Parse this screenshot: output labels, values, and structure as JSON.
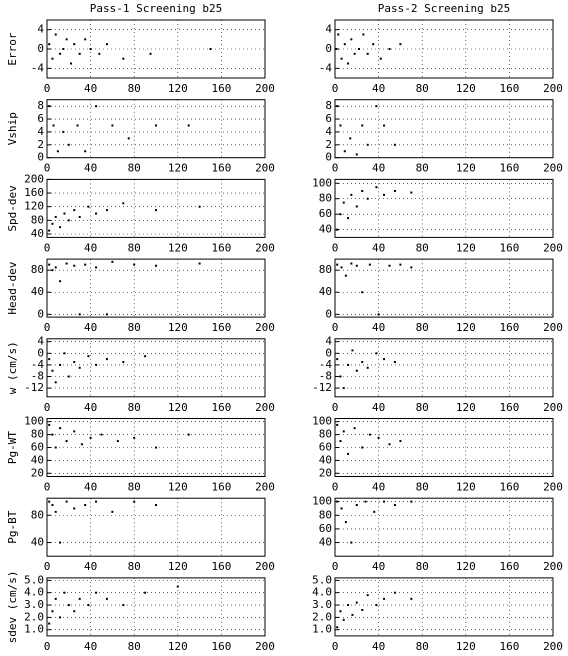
{
  "chart_data": [
    {
      "type": "scatter",
      "title": "Pass-1 Screening b25",
      "ylabel": "Error",
      "color": "#000000",
      "grid": true,
      "xlim": [
        0,
        200
      ],
      "xticks": [
        0,
        40,
        80,
        120,
        160,
        200
      ],
      "ylim": [
        -6,
        6
      ],
      "yticks": [
        -4,
        0,
        4
      ],
      "x": [
        2,
        5,
        8,
        12,
        15,
        18,
        22,
        25,
        30,
        35,
        40,
        48,
        55,
        70,
        95,
        150
      ],
      "values": [
        1,
        -2,
        3,
        -1,
        0,
        2,
        -3,
        1,
        -1,
        2,
        0,
        -1,
        1,
        -2,
        -1,
        0
      ]
    },
    {
      "type": "scatter",
      "title": "Pass-2 Screening b25",
      "color": "#000000",
      "grid": true,
      "xlim": [
        0,
        200
      ],
      "xticks": [
        0,
        40,
        80,
        120,
        160,
        200
      ],
      "ylim": [
        -6,
        6
      ],
      "yticks": [
        -4,
        0,
        4
      ],
      "x": [
        1,
        3,
        6,
        9,
        12,
        15,
        18,
        22,
        26,
        30,
        35,
        42,
        50,
        60
      ],
      "values": [
        0,
        3,
        -2,
        1,
        -3,
        2,
        -1,
        0,
        3,
        -1,
        1,
        -2,
        0,
        1
      ]
    },
    {
      "type": "scatter",
      "ylabel": "Vship",
      "color": "#000000",
      "grid": true,
      "xlim": [
        0,
        200
      ],
      "xticks": [
        0,
        40,
        80,
        120,
        160,
        200
      ],
      "ylim": [
        0,
        9
      ],
      "yticks": [
        0,
        2,
        4,
        6,
        8
      ],
      "x": [
        2,
        6,
        10,
        15,
        20,
        28,
        35,
        45,
        60,
        75,
        100,
        130
      ],
      "values": [
        8,
        5,
        1,
        4,
        2,
        5,
        1,
        8,
        5,
        3,
        5,
        5
      ]
    },
    {
      "type": "scatter",
      "color": "#000000",
      "grid": true,
      "xlim": [
        0,
        200
      ],
      "xticks": [
        0,
        40,
        80,
        120,
        160,
        200
      ],
      "ylim": [
        0,
        9
      ],
      "yticks": [
        0,
        2,
        4,
        6,
        8
      ],
      "x": [
        2,
        5,
        9,
        14,
        20,
        25,
        30,
        38,
        45,
        55
      ],
      "values": [
        8,
        5,
        1,
        3,
        0.5,
        5,
        2,
        8,
        5,
        2
      ]
    },
    {
      "type": "scatter",
      "ylabel": "Spd-dev",
      "color": "#000000",
      "grid": true,
      "xlim": [
        0,
        200
      ],
      "xticks": [
        0,
        40,
        80,
        120,
        160,
        200
      ],
      "ylim": [
        30,
        200
      ],
      "yticks": [
        40,
        80,
        120,
        160,
        200
      ],
      "x": [
        2,
        5,
        8,
        12,
        16,
        20,
        25,
        30,
        38,
        45,
        55,
        70,
        100,
        140
      ],
      "values": [
        50,
        70,
        90,
        60,
        100,
        80,
        110,
        90,
        120,
        100,
        110,
        130,
        110,
        120
      ]
    },
    {
      "type": "scatter",
      "color": "#000000",
      "grid": true,
      "xlim": [
        0,
        200
      ],
      "xticks": [
        0,
        40,
        80,
        120,
        160,
        200
      ],
      "ylim": [
        30,
        105
      ],
      "yticks": [
        40,
        60,
        80,
        100
      ],
      "x": [
        2,
        5,
        8,
        12,
        15,
        20,
        25,
        30,
        38,
        45,
        55,
        70
      ],
      "values": [
        40,
        60,
        75,
        55,
        85,
        70,
        90,
        80,
        95,
        85,
        90,
        88
      ]
    },
    {
      "type": "scatter",
      "ylabel": "Head-dev",
      "color": "#000000",
      "grid": true,
      "xlim": [
        0,
        200
      ],
      "xticks": [
        0,
        40,
        80,
        120,
        160,
        200
      ],
      "ylim": [
        -5,
        100
      ],
      "yticks": [
        0,
        40,
        80
      ],
      "x": [
        2,
        5,
        8,
        12,
        18,
        25,
        30,
        35,
        45,
        55,
        60,
        80,
        100,
        140
      ],
      "values": [
        90,
        80,
        85,
        60,
        92,
        88,
        0,
        90,
        85,
        0,
        95,
        90,
        88,
        92
      ]
    },
    {
      "type": "scatter",
      "color": "#000000",
      "grid": true,
      "xlim": [
        0,
        200
      ],
      "xticks": [
        0,
        40,
        80,
        120,
        160,
        200
      ],
      "ylim": [
        -5,
        100
      ],
      "yticks": [
        0,
        40,
        80
      ],
      "x": [
        2,
        6,
        10,
        15,
        20,
        25,
        32,
        40,
        50,
        60,
        70
      ],
      "values": [
        90,
        85,
        70,
        92,
        88,
        40,
        90,
        0,
        88,
        90,
        85
      ]
    },
    {
      "type": "scatter",
      "ylabel": "w (cm/s)",
      "color": "#000000",
      "grid": true,
      "xlim": [
        0,
        200
      ],
      "xticks": [
        0,
        40,
        80,
        120,
        160,
        200
      ],
      "ylim": [
        -15,
        5
      ],
      "yticks": [
        -12,
        -8,
        -4,
        0,
        4
      ],
      "x": [
        2,
        5,
        8,
        12,
        16,
        20,
        25,
        30,
        38,
        45,
        55,
        70,
        90
      ],
      "values": [
        -2,
        -6,
        -10,
        -4,
        0,
        -8,
        -3,
        -5,
        -1,
        -4,
        -2,
        -3,
        -1
      ]
    },
    {
      "type": "scatter",
      "color": "#000000",
      "grid": true,
      "xlim": [
        0,
        200
      ],
      "xticks": [
        0,
        40,
        80,
        120,
        160,
        200
      ],
      "ylim": [
        -15,
        5
      ],
      "yticks": [
        -12,
        -8,
        -4,
        0,
        4
      ],
      "x": [
        2,
        5,
        8,
        12,
        16,
        20,
        25,
        30,
        38,
        45,
        55
      ],
      "values": [
        -2,
        -8,
        -12,
        -4,
        1,
        -6,
        -3,
        -5,
        0,
        -2,
        -3
      ]
    },
    {
      "type": "scatter",
      "ylabel": "Pg-WT",
      "color": "#000000",
      "grid": true,
      "xlim": [
        0,
        200
      ],
      "xticks": [
        0,
        40,
        80,
        120,
        160,
        200
      ],
      "ylim": [
        15,
        105
      ],
      "yticks": [
        20,
        40,
        60,
        80,
        100
      ],
      "x": [
        2,
        5,
        8,
        12,
        18,
        25,
        32,
        40,
        50,
        65,
        80,
        100,
        130
      ],
      "values": [
        95,
        80,
        60,
        90,
        70,
        85,
        65,
        75,
        80,
        70,
        75,
        60,
        80
      ]
    },
    {
      "type": "scatter",
      "color": "#000000",
      "grid": true,
      "xlim": [
        0,
        200
      ],
      "xticks": [
        0,
        40,
        80,
        120,
        160,
        200
      ],
      "ylim": [
        15,
        105
      ],
      "yticks": [
        20,
        40,
        60,
        80,
        100
      ],
      "x": [
        2,
        5,
        8,
        12,
        18,
        25,
        32,
        40,
        50,
        60
      ],
      "values": [
        95,
        70,
        85,
        50,
        90,
        60,
        80,
        75,
        65,
        70
      ]
    },
    {
      "type": "scatter",
      "ylabel": "Pg-BT",
      "color": "#000000",
      "grid": true,
      "xlim": [
        0,
        200
      ],
      "xticks": [
        0,
        40,
        80,
        120,
        160,
        200
      ],
      "ylim": [
        20,
        105
      ],
      "yticks": [
        40,
        80
      ],
      "x": [
        2,
        5,
        8,
        12,
        18,
        25,
        35,
        45,
        60,
        80,
        100
      ],
      "values": [
        100,
        95,
        85,
        40,
        100,
        90,
        95,
        100,
        85,
        100,
        95
      ]
    },
    {
      "type": "scatter",
      "color": "#000000",
      "grid": true,
      "xlim": [
        0,
        200
      ],
      "xticks": [
        0,
        40,
        80,
        120,
        160,
        200
      ],
      "ylim": [
        20,
        105
      ],
      "yticks": [
        40,
        60,
        80,
        100
      ],
      "x": [
        2,
        6,
        10,
        15,
        20,
        28,
        36,
        45,
        55,
        70
      ],
      "values": [
        100,
        90,
        70,
        40,
        95,
        100,
        85,
        100,
        95,
        100
      ]
    },
    {
      "type": "scatter",
      "ylabel": "sdev (cm/s)",
      "color": "#000000",
      "grid": true,
      "xlim": [
        0,
        200
      ],
      "xticks": [
        0,
        40,
        80,
        120,
        160,
        200
      ],
      "ylim": [
        0.5,
        5.2
      ],
      "yticks": [
        {
          "value": 1,
          "label": "1.0"
        },
        {
          "value": 2,
          "label": "2.0"
        },
        {
          "value": 3,
          "label": "3.0"
        },
        {
          "value": 4,
          "label": "4.0"
        },
        {
          "value": 5,
          "label": "5.0"
        }
      ],
      "x": [
        2,
        5,
        8,
        12,
        16,
        20,
        25,
        30,
        38,
        45,
        55,
        70,
        90,
        120
      ],
      "values": [
        1.5,
        2.5,
        3.5,
        2,
        4,
        3,
        2.5,
        3.5,
        3,
        4,
        3.5,
        3,
        4,
        4.5
      ]
    },
    {
      "type": "scatter",
      "color": "#000000",
      "grid": true,
      "xlim": [
        0,
        200
      ],
      "xticks": [
        0,
        40,
        80,
        120,
        160,
        200
      ],
      "ylim": [
        0.5,
        5.2
      ],
      "yticks": [
        {
          "value": 1,
          "label": "1.0"
        },
        {
          "value": 2,
          "label": "2.0"
        },
        {
          "value": 3,
          "label": "3.0"
        },
        {
          "value": 4,
          "label": "4.0"
        },
        {
          "value": 5,
          "label": "5.0"
        }
      ],
      "x": [
        2,
        5,
        8,
        12,
        16,
        20,
        25,
        30,
        38,
        45,
        55,
        70
      ],
      "values": [
        1.2,
        2.5,
        1.8,
        3,
        2.2,
        3.2,
        2.6,
        3.8,
        3,
        3.5,
        4,
        3.5
      ]
    }
  ]
}
